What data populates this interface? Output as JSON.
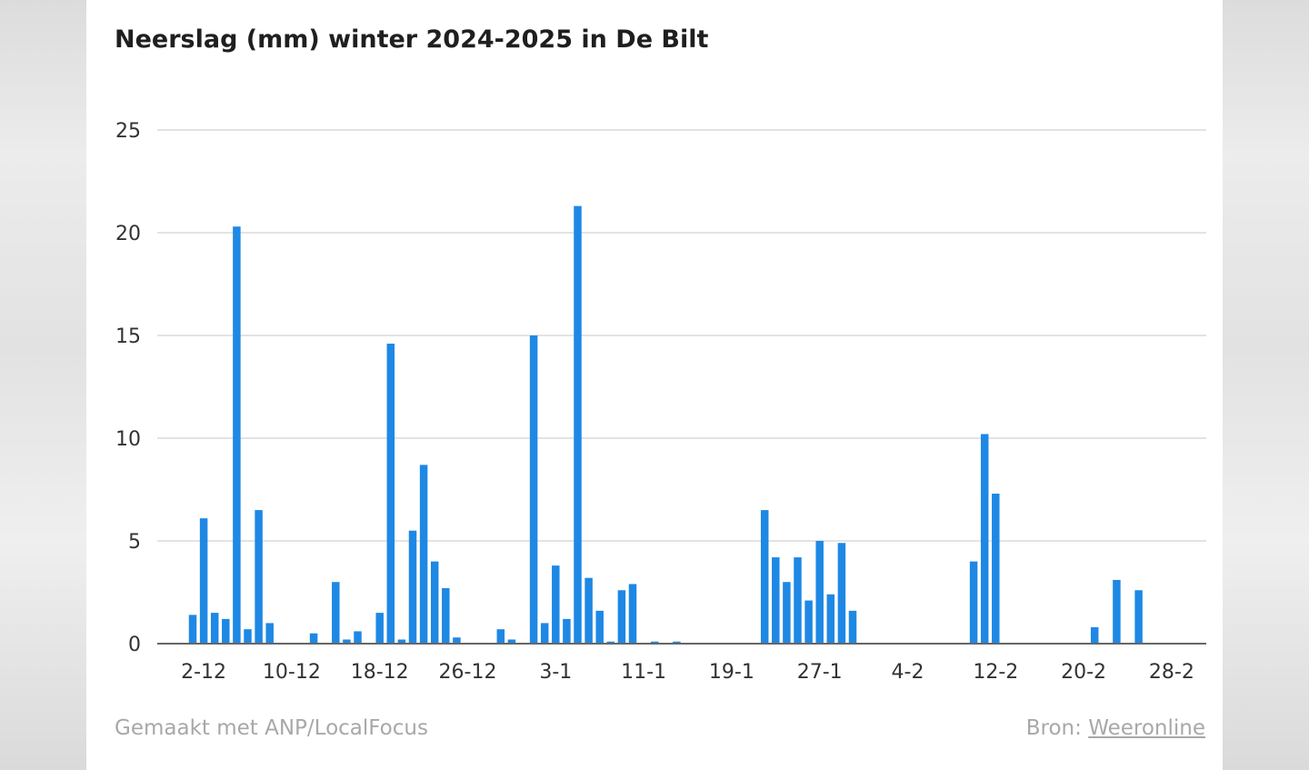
{
  "chart_data": {
    "type": "bar",
    "title": "Neerslag (mm) winter 2024-2025 in De Bilt",
    "xlabel": "",
    "ylabel": "",
    "ylim": [
      0,
      25
    ],
    "yticks": [
      "0",
      "5",
      "10",
      "15",
      "20",
      "25"
    ],
    "grid": true,
    "color": "#1e88e5",
    "x_tick_labels": [
      "2-12",
      "10-12",
      "18-12",
      "26-12",
      "3-1",
      "11-1",
      "19-1",
      "27-1",
      "4-2",
      "12-2",
      "20-2",
      "28-2"
    ],
    "categories": [
      "1-12",
      "2-12",
      "3-12",
      "4-12",
      "5-12",
      "6-12",
      "7-12",
      "8-12",
      "9-12",
      "10-12",
      "11-12",
      "12-12",
      "13-12",
      "14-12",
      "15-12",
      "16-12",
      "17-12",
      "18-12",
      "19-12",
      "20-12",
      "21-12",
      "22-12",
      "23-12",
      "24-12",
      "25-12",
      "26-12",
      "27-12",
      "28-12",
      "29-12",
      "30-12",
      "31-12",
      "1-1",
      "2-1",
      "3-1",
      "4-1",
      "5-1",
      "6-1",
      "7-1",
      "8-1",
      "9-1",
      "10-1",
      "11-1",
      "12-1",
      "13-1",
      "14-1",
      "15-1",
      "16-1",
      "17-1",
      "18-1",
      "19-1",
      "20-1",
      "21-1",
      "22-1",
      "23-1",
      "24-1",
      "25-1",
      "26-1",
      "27-1",
      "28-1",
      "29-1",
      "30-1",
      "31-1",
      "1-2",
      "2-2",
      "3-2",
      "4-2",
      "5-2",
      "6-2",
      "7-2",
      "8-2",
      "9-2",
      "10-2",
      "11-2",
      "12-2",
      "13-2",
      "14-2",
      "15-2",
      "16-2",
      "17-2",
      "18-2",
      "19-2",
      "20-2",
      "21-2",
      "22-2",
      "23-2",
      "24-2",
      "25-2",
      "26-2",
      "27-2",
      "28-2"
    ],
    "values": [
      1.4,
      6.1,
      1.5,
      1.2,
      20.3,
      0.7,
      6.5,
      1.0,
      0,
      0,
      0,
      0.5,
      0,
      3.0,
      0.2,
      0.6,
      0,
      1.5,
      14.6,
      0.2,
      5.5,
      8.7,
      4.0,
      2.7,
      0.3,
      0,
      0,
      0,
      0.7,
      0.2,
      0,
      15.0,
      1.0,
      3.8,
      1.2,
      21.3,
      3.2,
      1.6,
      0.1,
      2.6,
      2.9,
      0,
      0.1,
      0,
      0.1,
      0,
      0,
      0,
      0,
      0,
      0,
      0,
      6.5,
      4.2,
      3.0,
      4.2,
      2.1,
      5.0,
      2.4,
      4.9,
      1.6,
      0,
      0,
      0,
      0,
      0,
      0,
      0,
      0,
      0,
      0,
      4.0,
      10.2,
      7.3,
      0,
      0,
      0,
      0,
      0,
      0,
      0,
      0,
      0.8,
      0,
      3.1,
      0,
      2.6,
      0,
      0,
      0
    ]
  },
  "footer": {
    "credit": "Gemaakt met ANP/LocalFocus",
    "source_label": "Bron:",
    "source_link": "Weeronline"
  }
}
